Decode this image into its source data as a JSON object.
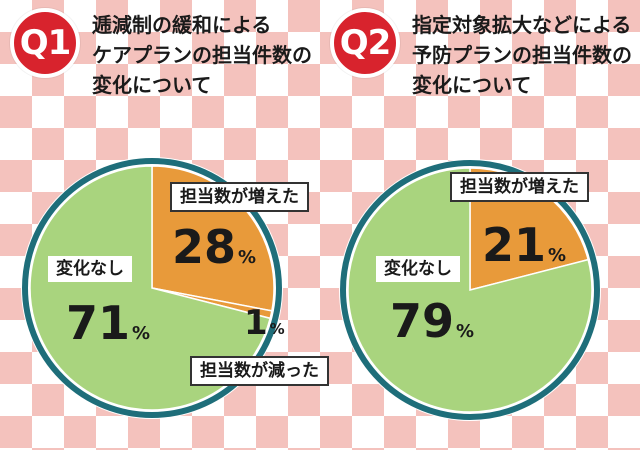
{
  "colors": {
    "no_change": "#a9d47e",
    "increased": "#e89a3a",
    "decreased": "#e89a3a",
    "ring": "#1e6e7a",
    "badge": "#d8232d",
    "checker": "#f4c2bd"
  },
  "q1": {
    "badge": "Q1",
    "title": "逓減制の緩和による\nケアプランの担当件数の\n変化について",
    "labels": {
      "increased": "担当数が増えた",
      "no_change": "変化なし",
      "decreased": "担当数が減った"
    },
    "values": {
      "increased": "28",
      "no_change": "71",
      "decreased": "1"
    },
    "percent_symbol": "%"
  },
  "q2": {
    "badge": "Q2",
    "title": "指定対象拡大などによる\n予防プランの担当件数の\n変化について",
    "labels": {
      "increased": "担当数が増えた",
      "no_change": "変化なし"
    },
    "values": {
      "increased": "21",
      "no_change": "79"
    },
    "percent_symbol": "%"
  },
  "chart_data": [
    {
      "type": "pie",
      "title": "逓減制の緩和によるケアプランの担当件数の変化について",
      "categories": [
        "担当数が増えた",
        "担当数が減った",
        "変化なし"
      ],
      "values": [
        28,
        1,
        71
      ],
      "unit": "%"
    },
    {
      "type": "pie",
      "title": "指定対象拡大などによる予防プランの担当件数の変化について",
      "categories": [
        "担当数が増えた",
        "変化なし"
      ],
      "values": [
        21,
        79
      ],
      "unit": "%"
    }
  ]
}
